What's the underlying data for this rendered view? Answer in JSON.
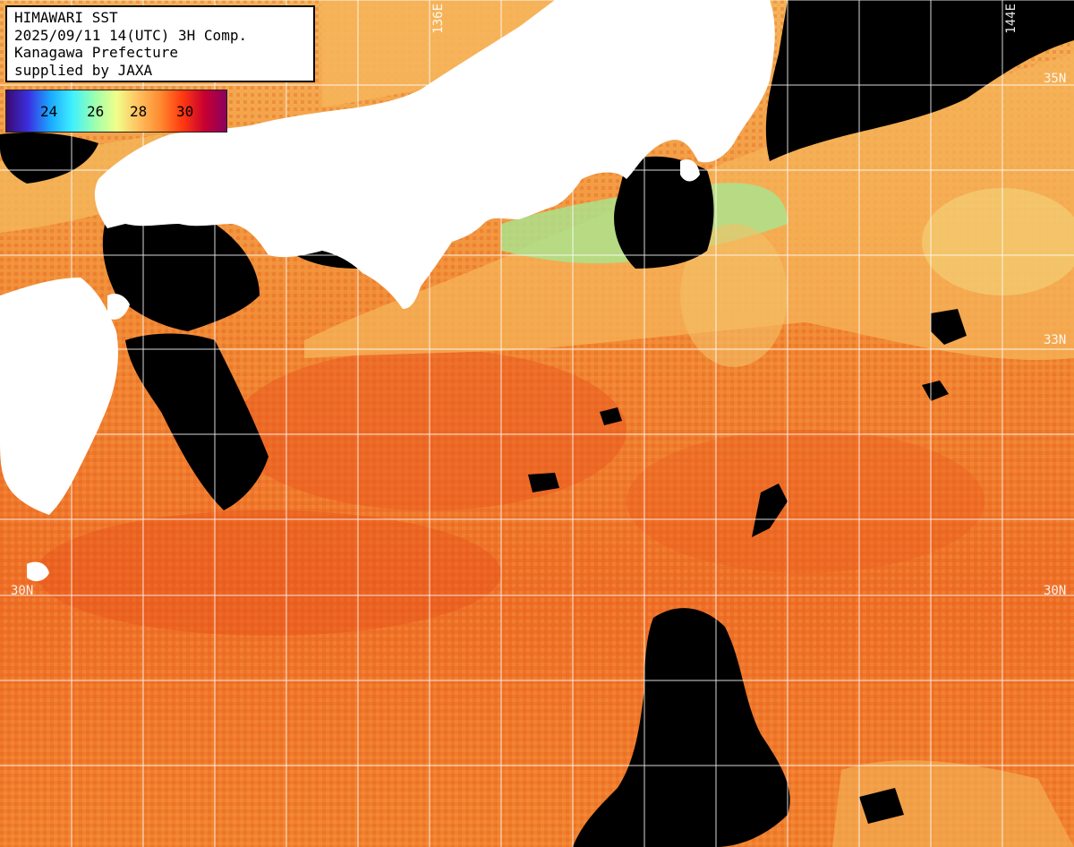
{
  "header": {
    "line1": "HIMAWARI SST",
    "line2": "2025/09/11 14(UTC) 3H Comp.",
    "line3": "Kanagawa Prefecture",
    "line4": "supplied by JAXA"
  },
  "legend": {
    "ticks": [
      "24",
      "26",
      "28",
      "30"
    ],
    "colors": [
      "#3a0a6e",
      "#3b2fe0",
      "#1aa8ff",
      "#3ff0ff",
      "#9affb0",
      "#f0ff8a",
      "#ffc060",
      "#ff8a30",
      "#ff3a10",
      "#c80030",
      "#8a0060"
    ]
  },
  "grid": {
    "lat_labels": [
      "35N",
      "33N",
      "30N"
    ],
    "lon_labels": [
      "136E",
      "144E"
    ]
  },
  "colors": {
    "land": "#ffffff",
    "cloud": "#000000",
    "sea_warm": "#f07a2a",
    "sea_hot": "#e8521c",
    "sea_cool": "#f4b65a",
    "sea_cold": "#a8e690",
    "grid": "#ffffff"
  }
}
